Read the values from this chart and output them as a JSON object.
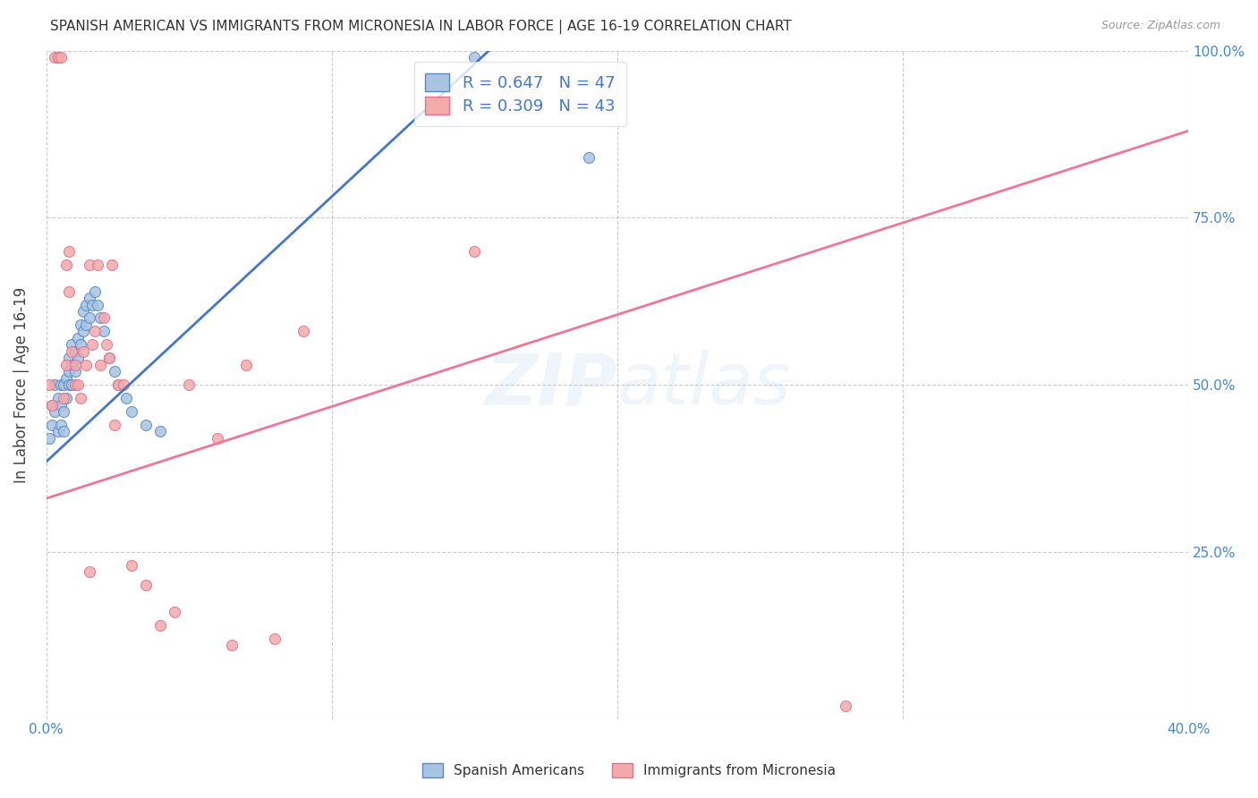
{
  "title": "SPANISH AMERICAN VS IMMIGRANTS FROM MICRONESIA IN LABOR FORCE | AGE 16-19 CORRELATION CHART",
  "source": "Source: ZipAtlas.com",
  "ylabel": "In Labor Force | Age 16-19",
  "x_min": 0.0,
  "x_max": 0.4,
  "y_min": 0.0,
  "y_max": 1.0,
  "x_ticks": [
    0.0,
    0.1,
    0.2,
    0.3,
    0.4
  ],
  "x_tick_labels": [
    "0.0%",
    "",
    "",
    "",
    "40.0%"
  ],
  "y_ticks": [
    0.0,
    0.25,
    0.5,
    0.75,
    1.0
  ],
  "right_y_tick_labels": [
    "",
    "25.0%",
    "50.0%",
    "75.0%",
    "100.0%"
  ],
  "blue_R": 0.647,
  "blue_N": 47,
  "pink_R": 0.309,
  "pink_N": 43,
  "blue_color": "#A8C4E0",
  "pink_color": "#F4AAAA",
  "blue_edge_color": "#5588CC",
  "pink_edge_color": "#E07090",
  "blue_line_color": "#4477CC",
  "pink_line_color": "#EE7799",
  "legend_label_blue": "Spanish Americans",
  "legend_label_pink": "Immigrants from Micronesia",
  "watermark": "ZIPatlas",
  "blue_scatter_x": [
    0.001,
    0.002,
    0.002,
    0.003,
    0.003,
    0.004,
    0.004,
    0.005,
    0.005,
    0.005,
    0.006,
    0.006,
    0.006,
    0.007,
    0.007,
    0.008,
    0.008,
    0.008,
    0.009,
    0.009,
    0.009,
    0.01,
    0.01,
    0.011,
    0.011,
    0.012,
    0.012,
    0.013,
    0.013,
    0.014,
    0.014,
    0.015,
    0.015,
    0.016,
    0.017,
    0.018,
    0.019,
    0.02,
    0.022,
    0.024,
    0.025,
    0.028,
    0.03,
    0.035,
    0.04,
    0.15,
    0.19
  ],
  "blue_scatter_y": [
    0.42,
    0.44,
    0.47,
    0.46,
    0.5,
    0.43,
    0.48,
    0.44,
    0.47,
    0.5,
    0.43,
    0.46,
    0.5,
    0.48,
    0.51,
    0.5,
    0.52,
    0.54,
    0.5,
    0.53,
    0.56,
    0.52,
    0.55,
    0.54,
    0.57,
    0.56,
    0.59,
    0.58,
    0.61,
    0.59,
    0.62,
    0.6,
    0.63,
    0.62,
    0.64,
    0.62,
    0.6,
    0.58,
    0.54,
    0.52,
    0.5,
    0.48,
    0.46,
    0.44,
    0.43,
    0.99,
    0.84
  ],
  "pink_scatter_x": [
    0.001,
    0.002,
    0.003,
    0.004,
    0.004,
    0.005,
    0.006,
    0.007,
    0.007,
    0.008,
    0.008,
    0.009,
    0.01,
    0.01,
    0.011,
    0.012,
    0.013,
    0.014,
    0.015,
    0.015,
    0.016,
    0.017,
    0.018,
    0.019,
    0.02,
    0.021,
    0.022,
    0.023,
    0.024,
    0.025,
    0.027,
    0.03,
    0.035,
    0.04,
    0.045,
    0.05,
    0.06,
    0.065,
    0.07,
    0.08,
    0.09,
    0.15,
    0.28
  ],
  "pink_scatter_y": [
    0.5,
    0.47,
    0.99,
    0.99,
    0.99,
    0.99,
    0.48,
    0.53,
    0.68,
    0.7,
    0.64,
    0.55,
    0.5,
    0.53,
    0.5,
    0.48,
    0.55,
    0.53,
    0.68,
    0.22,
    0.56,
    0.58,
    0.68,
    0.53,
    0.6,
    0.56,
    0.54,
    0.68,
    0.44,
    0.5,
    0.5,
    0.23,
    0.2,
    0.14,
    0.16,
    0.5,
    0.42,
    0.11,
    0.53,
    0.12,
    0.58,
    0.7,
    0.02
  ],
  "blue_line_x": [
    0.0,
    0.155
  ],
  "blue_line_y": [
    0.385,
    1.0
  ],
  "pink_line_x": [
    0.0,
    0.4
  ],
  "pink_line_y": [
    0.33,
    0.88
  ]
}
